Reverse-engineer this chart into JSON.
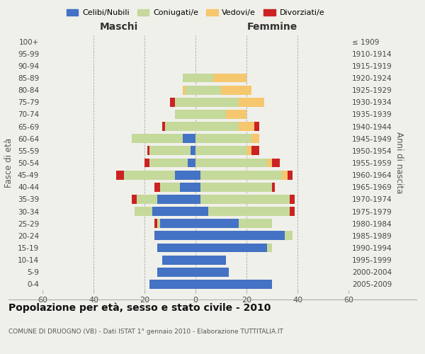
{
  "age_groups": [
    "0-4",
    "5-9",
    "10-14",
    "15-19",
    "20-24",
    "25-29",
    "30-34",
    "35-39",
    "40-44",
    "45-49",
    "50-54",
    "55-59",
    "60-64",
    "65-69",
    "70-74",
    "75-79",
    "80-84",
    "85-89",
    "90-94",
    "95-99",
    "100+"
  ],
  "birth_years": [
    "2005-2009",
    "2000-2004",
    "1995-1999",
    "1990-1994",
    "1985-1989",
    "1980-1984",
    "1975-1979",
    "1970-1974",
    "1965-1969",
    "1960-1964",
    "1955-1959",
    "1950-1954",
    "1945-1949",
    "1940-1944",
    "1935-1939",
    "1930-1934",
    "1925-1929",
    "1920-1924",
    "1915-1919",
    "1910-1914",
    "≤ 1909"
  ],
  "maschi": {
    "celibi": [
      18,
      15,
      13,
      15,
      16,
      14,
      17,
      15,
      6,
      8,
      3,
      2,
      5,
      0,
      0,
      0,
      0,
      0,
      0,
      0,
      0
    ],
    "coniugati": [
      0,
      0,
      0,
      0,
      0,
      1,
      7,
      8,
      8,
      20,
      15,
      16,
      20,
      12,
      8,
      8,
      4,
      5,
      0,
      0,
      0
    ],
    "vedovi": [
      0,
      0,
      0,
      0,
      0,
      0,
      0,
      0,
      0,
      0,
      0,
      0,
      0,
      0,
      0,
      0,
      1,
      0,
      0,
      0,
      0
    ],
    "divorziati": [
      0,
      0,
      0,
      0,
      0,
      1,
      0,
      2,
      2,
      3,
      2,
      1,
      0,
      1,
      0,
      2,
      0,
      0,
      0,
      0,
      0
    ]
  },
  "femmine": {
    "nubili": [
      30,
      13,
      12,
      28,
      35,
      17,
      5,
      2,
      2,
      2,
      0,
      0,
      0,
      0,
      0,
      0,
      0,
      0,
      0,
      0,
      0
    ],
    "coniugate": [
      0,
      0,
      0,
      2,
      3,
      13,
      32,
      35,
      28,
      32,
      28,
      20,
      22,
      17,
      12,
      17,
      10,
      7,
      0,
      0,
      0
    ],
    "vedove": [
      0,
      0,
      0,
      0,
      0,
      0,
      0,
      0,
      0,
      2,
      2,
      2,
      3,
      6,
      8,
      10,
      12,
      13,
      0,
      0,
      0
    ],
    "divorziate": [
      0,
      0,
      0,
      0,
      0,
      0,
      2,
      2,
      1,
      2,
      3,
      3,
      0,
      2,
      0,
      0,
      0,
      0,
      0,
      0,
      0
    ]
  },
  "colors": {
    "celibi_nubili": "#4472c4",
    "coniugati": "#c5d99b",
    "vedovi": "#f5c76e",
    "divorziati": "#cc2222"
  },
  "xlim": 60,
  "title": "Popolazione per età, sesso e stato civile - 2010",
  "subtitle": "COMUNE DI DRUOGNO (VB) - Dati ISTAT 1° gennaio 2010 - Elaborazione TUTTITALIA.IT",
  "ylabel": "Fasce di età",
  "ylabel_right": "Anni di nascita",
  "xlabel_maschi": "Maschi",
  "xlabel_femmine": "Femmine",
  "bg_color": "#f0f0eb"
}
